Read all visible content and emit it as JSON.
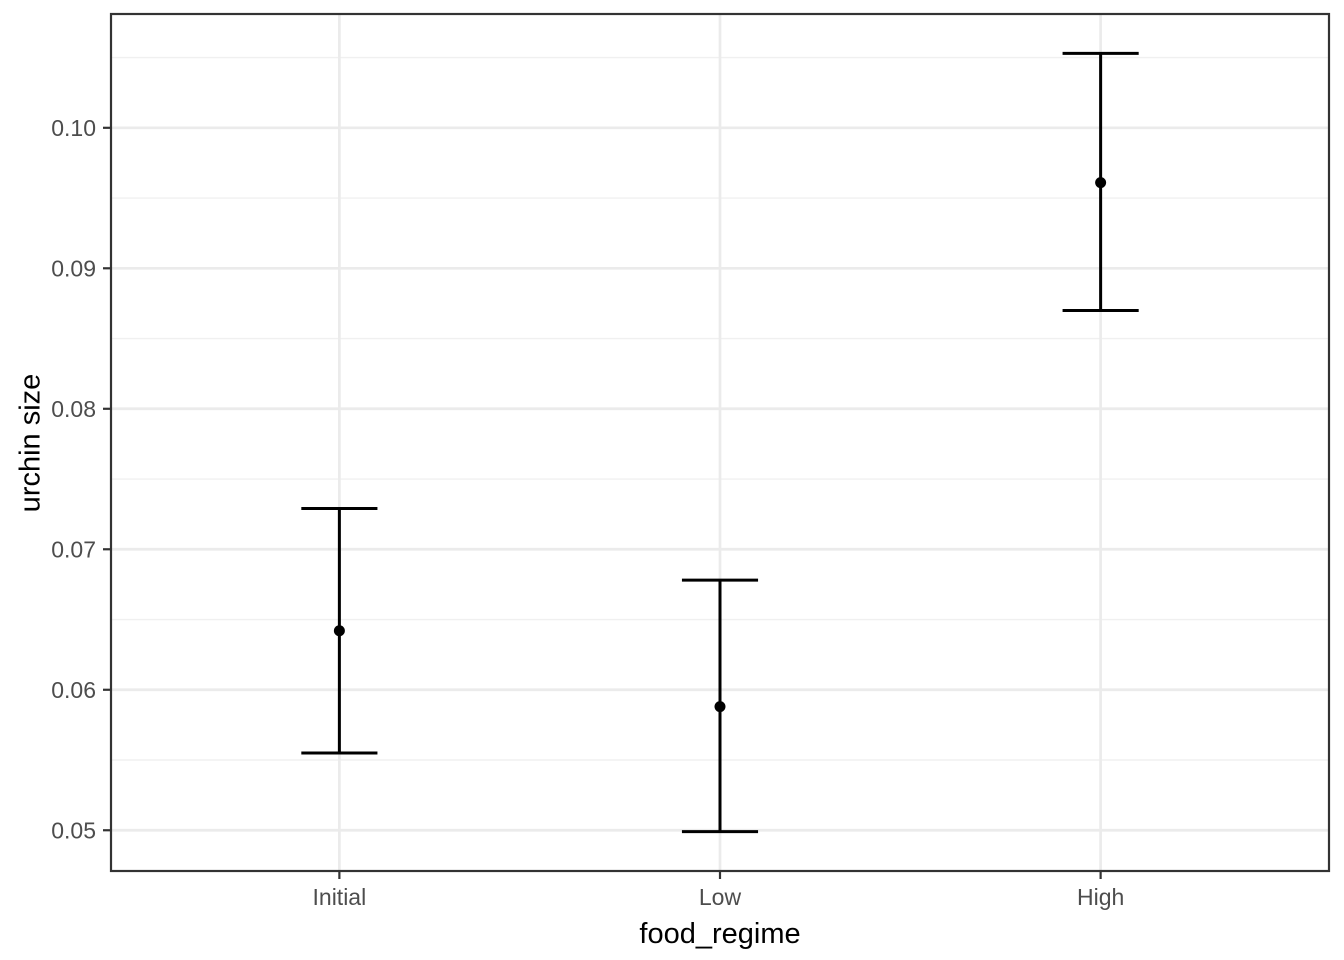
{
  "chart_data": {
    "type": "scatter",
    "subtype": "point-with-errorbars",
    "title": "",
    "xlabel": "food_regime",
    "ylabel": "urchin size",
    "categories": [
      "Initial",
      "Low",
      "High"
    ],
    "x_positions": [
      1,
      2,
      3
    ],
    "series": [
      {
        "name": "mean",
        "values": [
          0.0642,
          0.0588,
          0.0961
        ]
      },
      {
        "name": "ci_lower",
        "values": [
          0.0555,
          0.0499,
          0.087
        ]
      },
      {
        "name": "ci_upper",
        "values": [
          0.0729,
          0.0678,
          0.1053
        ]
      }
    ],
    "y_ticks": {
      "values": [
        0.05,
        0.06,
        0.07,
        0.08,
        0.09,
        0.1
      ],
      "labels": [
        "0.05",
        "0.06",
        "0.07",
        "0.08",
        "0.09",
        "0.10"
      ]
    },
    "y_minor_ticks": [
      0.055,
      0.065,
      0.075,
      0.085,
      0.095,
      0.105
    ],
    "ylim": [
      0.0471,
      0.1081
    ],
    "xlim": [
      0.4,
      3.6
    ],
    "grid": {
      "horizontal_major": true,
      "horizontal_minor": true,
      "vertical_major": true,
      "vertical_minor": false
    },
    "legend": "none",
    "errorbar_cap_halfwidth_units": 0.1,
    "colors": {
      "data": "#000000",
      "grid_major": "#EBEBEB",
      "grid_minor": "#F0F0F0",
      "panel_border": "#333333",
      "tick_mark": "#333333",
      "axis_text": "#4D4D4D",
      "axis_title": "#000000",
      "background": "#FFFFFF"
    }
  }
}
